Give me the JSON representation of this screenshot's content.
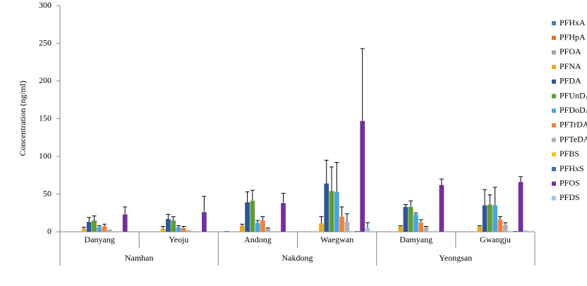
{
  "chart_data": {
    "type": "bar",
    "y_label": "Concentration (ng/ml)",
    "ylim": [
      0,
      300
    ],
    "yticks": [
      0,
      50,
      100,
      150,
      200,
      250,
      300
    ],
    "categories": [
      "Danyang",
      "Yeoju",
      "Andong",
      "Waegwan",
      "Damyang",
      "Gwangju"
    ],
    "groups": [
      "Namhan",
      "Nakdong",
      "Yeongsan"
    ],
    "category_groups": [
      "Namhan",
      "Namhan",
      "Nakdong",
      "Nakdong",
      "Yeongsan",
      "Yeongsan"
    ],
    "legend": "right",
    "series": [
      {
        "name": "PFHxA",
        "color": "#4a7ebb",
        "values": [
          0,
          0,
          1,
          0.5,
          0.5,
          0.5
        ],
        "errors": [
          0,
          0,
          0,
          0,
          0,
          0
        ]
      },
      {
        "name": "PFHpA",
        "color": "#e0712c",
        "values": [
          0,
          0,
          0,
          0.5,
          0.5,
          0
        ],
        "errors": [
          0,
          0,
          0,
          0,
          0,
          0
        ]
      },
      {
        "name": "PFOA",
        "color": "#a5a5a5",
        "values": [
          0,
          0,
          0,
          0,
          0,
          0
        ],
        "errors": [
          0,
          0,
          0,
          0,
          0,
          0
        ]
      },
      {
        "name": "PFNA",
        "color": "#e3ac24",
        "values": [
          4,
          4,
          8,
          11,
          7,
          7
        ],
        "errors": [
          2,
          3,
          2,
          9,
          1,
          1
        ]
      },
      {
        "name": "PFDA",
        "color": "#2f5597",
        "values": [
          13,
          17,
          39,
          64,
          33,
          35
        ],
        "errors": [
          6,
          6,
          14,
          31,
          3,
          21
        ]
      },
      {
        "name": "PFUnDA",
        "color": "#5d9e32",
        "values": [
          15,
          15,
          41,
          54,
          33,
          36
        ],
        "errors": [
          6,
          5,
          14,
          32,
          8,
          13
        ]
      },
      {
        "name": "PFDoDA",
        "color": "#4ba3dc",
        "values": [
          6,
          6,
          12,
          53,
          23,
          35
        ],
        "errors": [
          2,
          2,
          3,
          39,
          2,
          24
        ]
      },
      {
        "name": "PFTrDA",
        "color": "#f0803c",
        "values": [
          7,
          5,
          15,
          20,
          12,
          16
        ],
        "errors": [
          3,
          2,
          5,
          13,
          4,
          4
        ]
      },
      {
        "name": "PFTeDA",
        "color": "#b0b0b0",
        "values": [
          3,
          2,
          4,
          13,
          6,
          9
        ],
        "errors": [
          0,
          0,
          1,
          11,
          1,
          3
        ]
      },
      {
        "name": "PFBS",
        "color": "#f2c318",
        "values": [
          0,
          0,
          0,
          0,
          0,
          0
        ],
        "errors": [
          0,
          0,
          0,
          0,
          0,
          0
        ]
      },
      {
        "name": "PFHxS",
        "color": "#3c6fb0",
        "values": [
          0,
          0,
          0,
          1,
          0,
          1
        ],
        "errors": [
          0,
          0,
          0,
          0,
          0,
          0
        ]
      },
      {
        "name": "PFOS",
        "color": "#7030a0",
        "values": [
          23,
          26,
          38,
          147,
          62,
          66
        ],
        "errors": [
          10,
          21,
          13,
          96,
          8,
          7
        ]
      },
      {
        "name": "PFDS",
        "color": "#9dc3e6",
        "values": [
          0,
          0,
          0,
          5,
          1,
          2
        ],
        "errors": [
          0,
          0,
          0,
          7,
          0,
          0
        ]
      }
    ]
  }
}
